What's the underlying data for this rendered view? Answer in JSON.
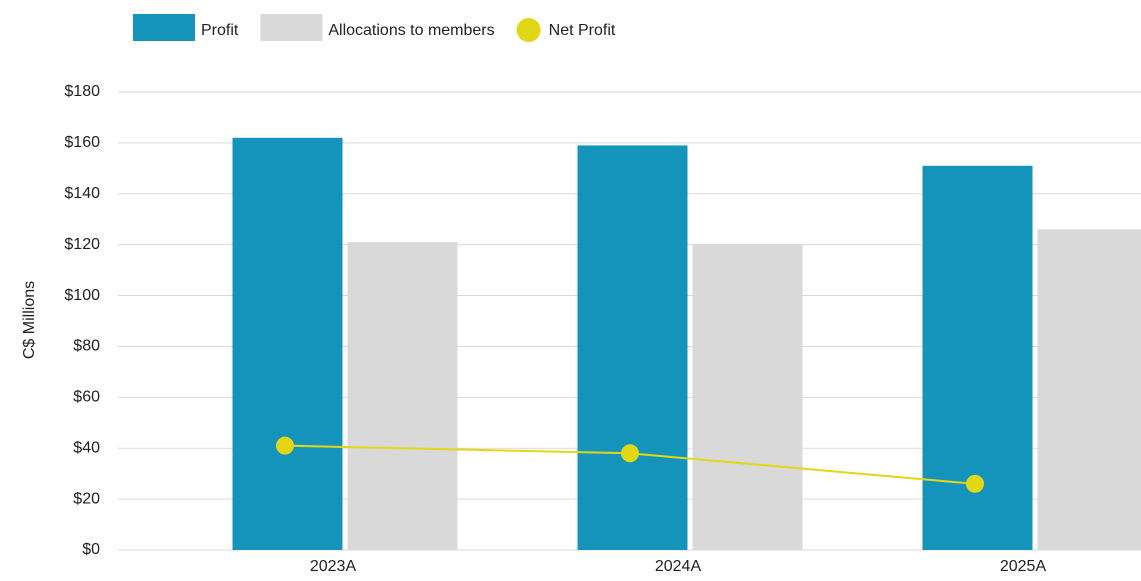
{
  "chart_data": {
    "type": "bar_line",
    "y_axis_label": "C$ Millions",
    "categories": [
      "2023A",
      "2024A",
      "2025A"
    ],
    "series": [
      {
        "name": "Profit",
        "color": "#1594bb",
        "values": [
          162,
          159,
          151
        ]
      },
      {
        "name": "Allocations to members",
        "color": "#d9d9d9",
        "values": [
          121,
          120,
          126
        ]
      },
      {
        "name": "Net Profit",
        "color": "#e2d715",
        "type": "line",
        "values": [
          41,
          38,
          26
        ]
      }
    ],
    "ylim": [
      0,
      180
    ],
    "yticks": [
      {
        "value": 0,
        "label": "$0"
      },
      {
        "value": 20,
        "label": "$20"
      },
      {
        "value": 40,
        "label": "$40"
      },
      {
        "value": 60,
        "label": "$60"
      },
      {
        "value": 80,
        "label": "$80"
      },
      {
        "value": 100,
        "label": "$100"
      },
      {
        "value": 120,
        "label": "$120"
      },
      {
        "value": 140,
        "label": "$140"
      },
      {
        "value": 160,
        "label": "$160"
      },
      {
        "value": 180,
        "label": "$180"
      }
    ],
    "grid": true,
    "legend": "top-left"
  }
}
